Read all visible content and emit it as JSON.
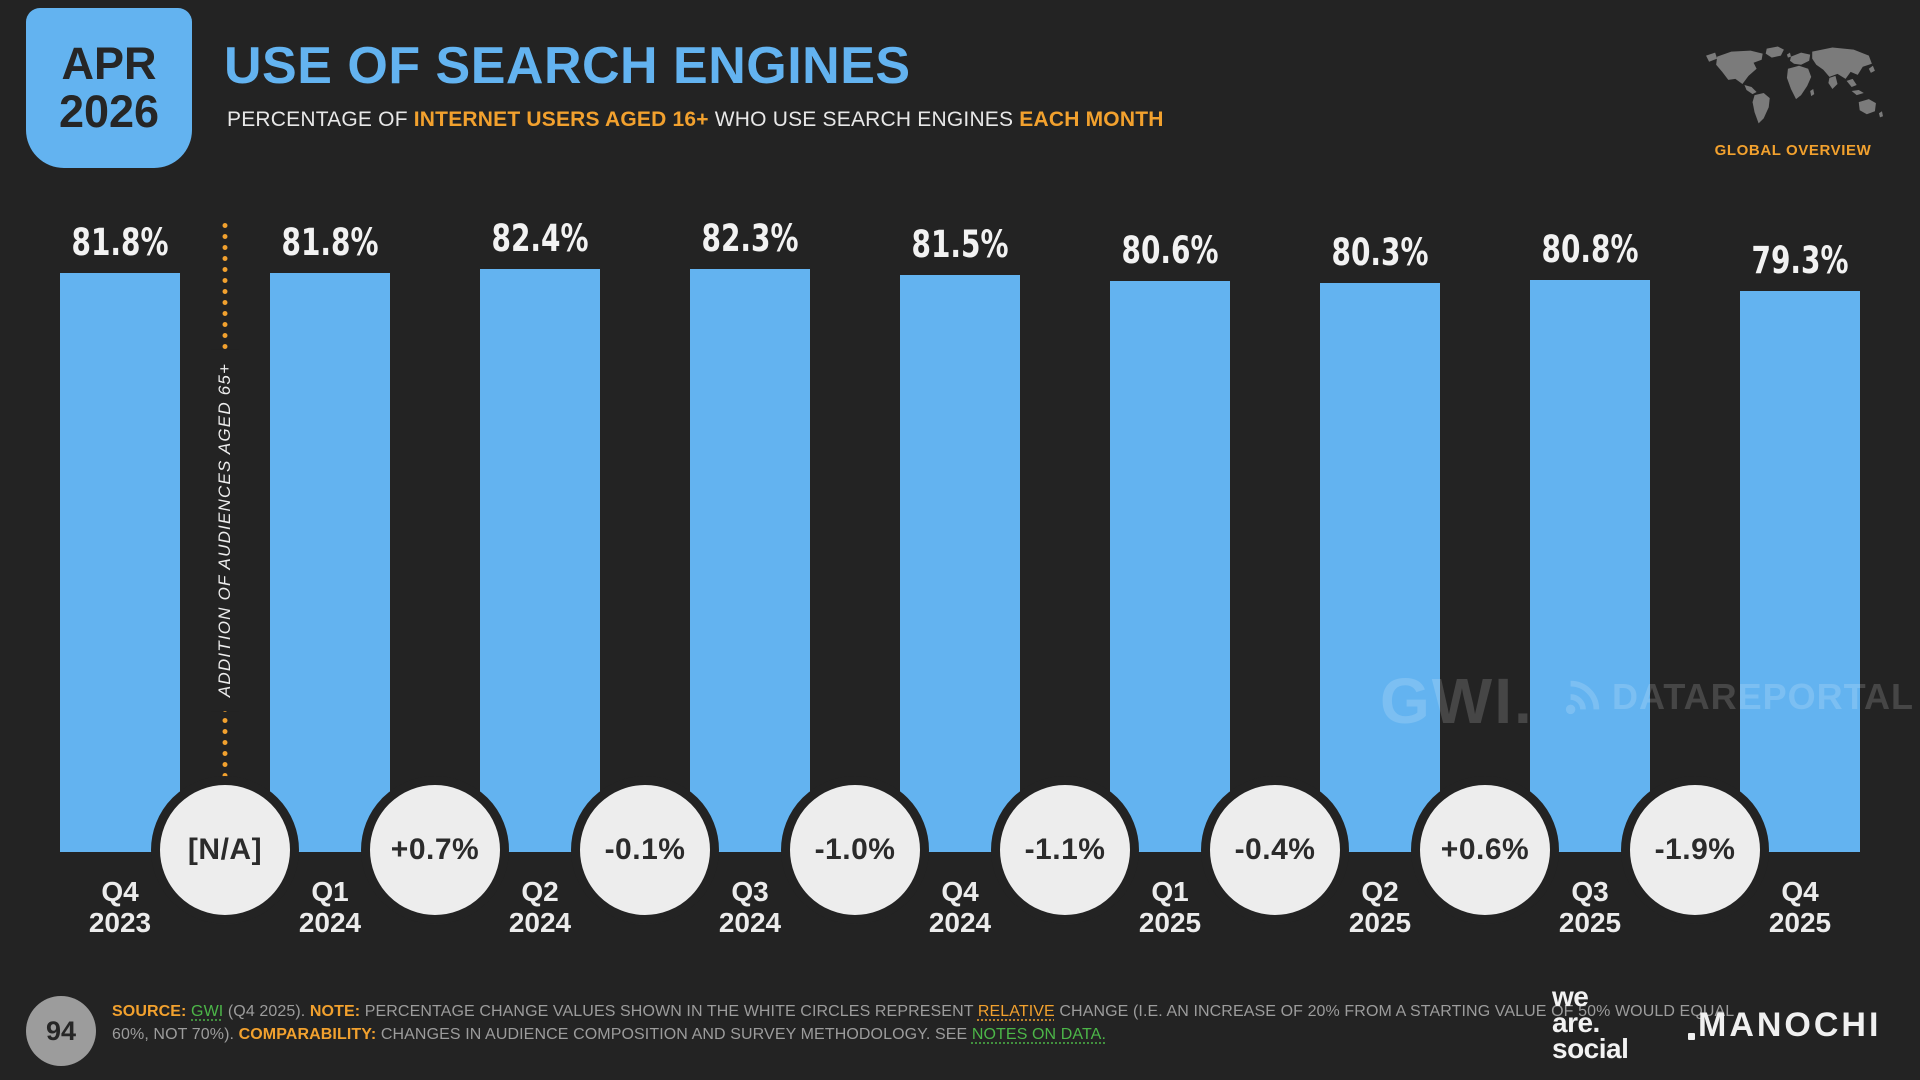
{
  "header": {
    "date_badge": {
      "month": "APR",
      "year": "2026"
    },
    "title": "USE OF SEARCH ENGINES",
    "subtitle_segments": [
      {
        "text": "PERCENTAGE OF ",
        "style": "plain"
      },
      {
        "text": "INTERNET USERS AGED 16+",
        "style": "label"
      },
      {
        "text": " WHO USE SEARCH ENGINES ",
        "style": "plain"
      },
      {
        "text": "EACH MONTH",
        "style": "label"
      }
    ],
    "region_label": "GLOBAL OVERVIEW"
  },
  "chart_data": {
    "type": "bar",
    "title": "USE OF SEARCH ENGINES",
    "categories": [
      "Q4 2023",
      "Q1 2024",
      "Q2 2024",
      "Q3 2024",
      "Q4 2024",
      "Q1 2025",
      "Q2 2025",
      "Q3 2025",
      "Q4 2025"
    ],
    "values": [
      81.8,
      81.8,
      82.4,
      82.3,
      81.5,
      80.6,
      80.3,
      80.8,
      79.3
    ],
    "value_labels": [
      "81.8%",
      "81.8%",
      "82.4%",
      "82.3%",
      "81.5%",
      "80.6%",
      "80.3%",
      "80.8%",
      "79.3%"
    ],
    "relative_changes": [
      "[N/A]",
      "+0.7%",
      "-0.1%",
      "-1.0%",
      "-1.1%",
      "-0.4%",
      "+0.6%",
      "-1.9%"
    ],
    "annotation": "ADDITION OF AUDIENCES AGED 65+",
    "xlabel": "",
    "ylabel": "",
    "ylim": [
      0,
      100
    ],
    "grid": false,
    "legend_position": "none",
    "bar_color": "#63b3f0"
  },
  "watermarks": {
    "gwi": "GWI.",
    "datareportal": "DATAREPORTAL"
  },
  "footer": {
    "page_number": "94",
    "note_line1_segments": [
      {
        "text": "SOURCE: ",
        "style": "label"
      },
      {
        "text": "GWI",
        "style": "link"
      },
      {
        "text": " (Q4 2025). ",
        "style": "plain"
      },
      {
        "text": "NOTE: ",
        "style": "label"
      },
      {
        "text": "PERCENTAGE CHANGE VALUES SHOWN IN THE WHITE CIRCLES REPRESENT ",
        "style": "plain"
      },
      {
        "text": "RELATIVE",
        "style": "accent"
      },
      {
        "text": " CHANGE (I.E. AN INCREASE OF 20% FROM A STARTING VALUE OF 50% WOULD EQUAL",
        "style": "plain"
      }
    ],
    "note_line2_segments": [
      {
        "text": "60%, NOT 70%). ",
        "style": "plain"
      },
      {
        "text": "COMPARABILITY: ",
        "style": "label"
      },
      {
        "text": "CHANGES IN AUDIENCE COMPOSITION AND SURVEY METHODOLOGY. SEE ",
        "style": "plain"
      },
      {
        "text": "NOTES ON DATA.",
        "style": "link"
      }
    ],
    "we_are_social_lines": [
      "we",
      "are.",
      "social"
    ],
    "partner_logo": "MANOCHI"
  },
  "colors": {
    "background": "#232323",
    "bar_blue": "#63b3f0",
    "accent_orange": "#f2a12e",
    "link_green": "#4cb648",
    "circle_fill": "#ededed",
    "map_gray": "#7b7b7b"
  }
}
